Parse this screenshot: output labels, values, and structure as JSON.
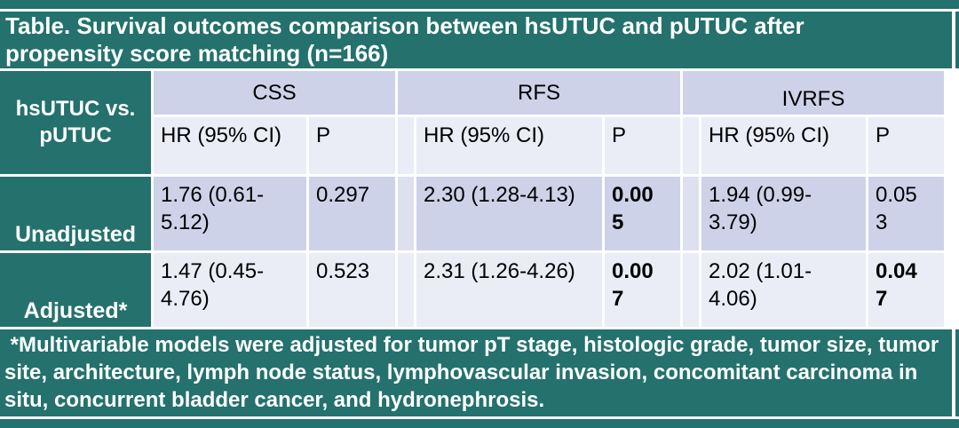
{
  "colors": {
    "accent_teal": "#24716d",
    "header_row_lavender": "#cdd2e9",
    "light_row_lavender": "#eaecf6"
  },
  "title": "Table. Survival outcomes comparison between hsUTUC and pUTUC after propensity score matching (n=166)",
  "table": {
    "row_header": "hsUTUC vs. pUTUC",
    "group_headers": [
      "CSS",
      "RFS",
      "IVRFS"
    ],
    "subheader_hr": "HR (95% CI)",
    "subheader_p": "P",
    "rows": [
      {
        "label": "Unadjusted",
        "css": {
          "hr": "1.76 (0.61-5.12)",
          "p": "0.297",
          "p_bold": false
        },
        "rfs": {
          "hr": "2.30 (1.28-4.13)",
          "p": "0.005",
          "p_bold": true
        },
        "ivrfs": {
          "hr": "1.94 (0.99-3.79)",
          "p": "0.053",
          "p_bold": false
        }
      },
      {
        "label": "Adjusted*",
        "css": {
          "hr": "1.47 (0.45-4.76)",
          "p": "0.523",
          "p_bold": false
        },
        "rfs": {
          "hr": "2.31 (1.26-4.26)",
          "p": "0.007",
          "p_bold": true
        },
        "ivrfs": {
          "hr": "2.02 (1.01-4.06)",
          "p": "0.047",
          "p_bold": true
        }
      }
    ]
  },
  "footnote": " *Multivariable models were adjusted for tumor pT stage, histologic grade, tumor size, tumor site, architecture, lymph node status, lymphovascular invasion, concomitant carcinoma in situ, concurrent bladder cancer, and hydronephrosis."
}
